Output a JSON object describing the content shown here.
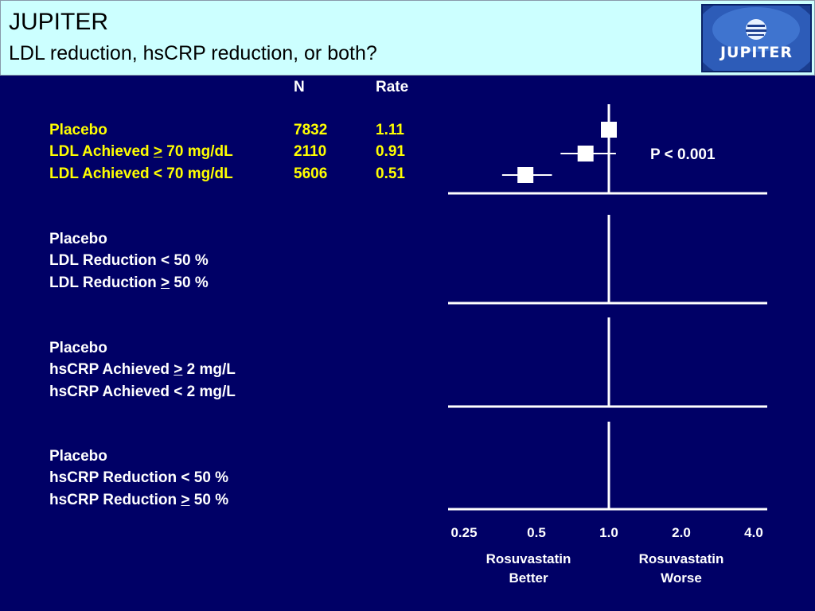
{
  "header": {
    "title": "JUPITER",
    "subtitle": "LDL reduction, hsCRP reduction, or both?",
    "logo_text": "JUPITER"
  },
  "columns": {
    "n": "N",
    "rate": "Rate"
  },
  "groups": [
    {
      "rows": [
        {
          "pre": "Placebo",
          "op": "",
          "post": "",
          "n": "7832",
          "rate": "1.11"
        },
        {
          "pre": "LDL Achieved ",
          "op": ">",
          "post": " 70 mg/dL",
          "n": "2110",
          "rate": "0.91"
        },
        {
          "pre": "LDL Achieved < 70 mg/dL",
          "op": "",
          "post": "",
          "n": "5606",
          "rate": "0.51"
        }
      ]
    },
    {
      "rows": [
        {
          "pre": "Placebo",
          "op": "",
          "post": ""
        },
        {
          "pre": "LDL Reduction < 50 %",
          "op": "",
          "post": ""
        },
        {
          "pre": "LDL Reduction ",
          "op": ">",
          "post": " 50 %"
        }
      ]
    },
    {
      "rows": [
        {
          "pre": "Placebo",
          "op": "",
          "post": ""
        },
        {
          "pre": "hsCRP Achieved ",
          "op": ">",
          "post": " 2 mg/L"
        },
        {
          "pre": "hsCRP Achieved < 2 mg/L",
          "op": "",
          "post": ""
        }
      ]
    },
    {
      "rows": [
        {
          "pre": "Placebo",
          "op": "",
          "post": ""
        },
        {
          "pre": "hsCRP Reduction < 50 %",
          "op": "",
          "post": ""
        },
        {
          "pre": "hsCRP Reduction ",
          "op": ">",
          "post": " 50 %"
        }
      ]
    }
  ],
  "chart_data": {
    "type": "scatter",
    "x_scale": "log2",
    "xlim": [
      0.25,
      4.0
    ],
    "x_ticks": [
      0.25,
      0.5,
      1.0,
      2.0,
      4.0
    ],
    "x_tick_labels": [
      "0.25",
      "0.5",
      "1.0",
      "2.0",
      "4.0"
    ],
    "reference_line": 1.0,
    "panels": [
      {
        "points": [
          {
            "label": "Placebo",
            "x": 1.0,
            "ci": null
          },
          {
            "label": "LDL Achieved > 70 mg/dL",
            "x": 0.8,
            "ci": [
              0.63,
              1.07
            ]
          },
          {
            "label": "LDL Achieved < 70 mg/dL",
            "x": 0.45,
            "ci": [
              0.36,
              0.58
            ]
          }
        ],
        "annotation": "P < 0.001"
      },
      {
        "points": []
      },
      {
        "points": []
      },
      {
        "points": []
      }
    ],
    "left_caption": [
      "Rosuvastatin",
      "Better"
    ],
    "right_caption": [
      "Rosuvastatin",
      "Worse"
    ],
    "colors": {
      "background": "#000066",
      "marks": "#ffffff",
      "highlight": "#ffff00"
    }
  }
}
